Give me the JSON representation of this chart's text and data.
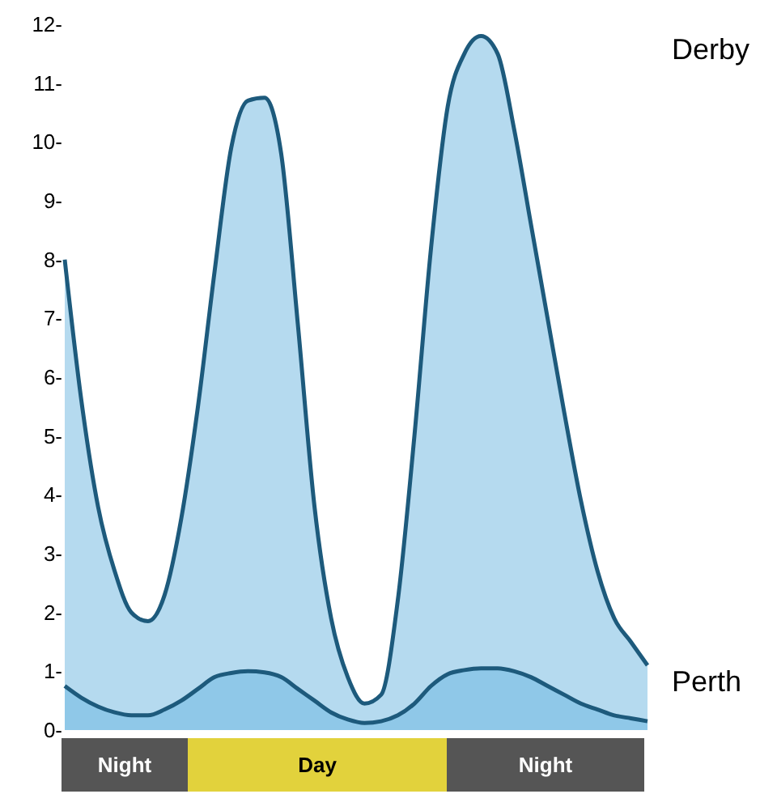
{
  "chart_data": {
    "type": "area",
    "categories": [
      null,
      null,
      null,
      null,
      null,
      null,
      null,
      null,
      null,
      null,
      null,
      null,
      null,
      null,
      null,
      null,
      null,
      null,
      null,
      null,
      null,
      null,
      null,
      null,
      null,
      null,
      null,
      null,
      null,
      null,
      null,
      null,
      null,
      null,
      null,
      null
    ],
    "series": [
      {
        "name": "Derby",
        "color": "#b5daef",
        "values": [
          8.0,
          5.6,
          3.8,
          2.7,
          2.0,
          1.85,
          2.3,
          3.6,
          5.5,
          7.8,
          9.9,
          10.7,
          10.75,
          9.8,
          6.9,
          3.8,
          1.9,
          0.9,
          0.45,
          0.6,
          2.2,
          5.0,
          8.2,
          10.6,
          11.5,
          11.8,
          11.5,
          10.2,
          8.6,
          7.0,
          5.4,
          3.9,
          2.7,
          1.9,
          1.5,
          1.1
        ]
      },
      {
        "name": "Perth",
        "color": "#8fc8e8",
        "values": [
          0.75,
          0.55,
          0.4,
          0.3,
          0.25,
          0.25,
          0.35,
          0.5,
          0.7,
          0.9,
          0.97,
          1.0,
          0.98,
          0.9,
          0.7,
          0.5,
          0.3,
          0.18,
          0.12,
          0.15,
          0.25,
          0.45,
          0.75,
          0.95,
          1.02,
          1.05,
          1.05,
          1.0,
          0.9,
          0.75,
          0.6,
          0.45,
          0.35,
          0.25,
          0.2,
          0.15
        ]
      }
    ],
    "ylim": [
      0,
      12
    ],
    "yticks": [
      {
        "value": 0,
        "label": "0-"
      },
      {
        "value": 1,
        "label": "1-"
      },
      {
        "value": 2,
        "label": "2-"
      },
      {
        "value": 3,
        "label": "3-"
      },
      {
        "value": 4,
        "label": "4-"
      },
      {
        "value": 5,
        "label": "5-"
      },
      {
        "value": 6,
        "label": "6-"
      },
      {
        "value": 7,
        "label": "7-"
      },
      {
        "value": 8,
        "label": "8-"
      },
      {
        "value": 9,
        "label": "9-"
      },
      {
        "value": 10,
        "label": "10-"
      },
      {
        "value": 11,
        "label": "11-"
      },
      {
        "value": 12,
        "label": "12-"
      }
    ],
    "annotations": [
      "Night",
      "Day",
      "Night"
    ]
  }
}
